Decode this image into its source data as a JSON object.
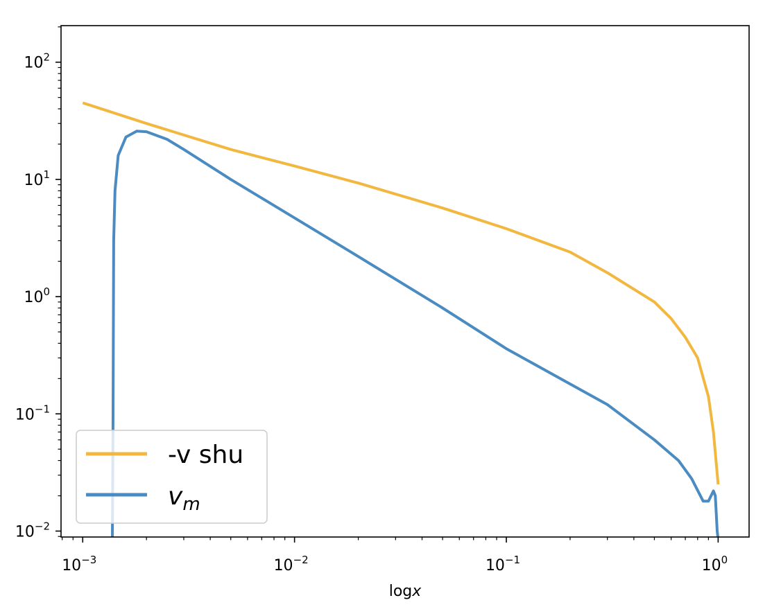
{
  "chart_data": {
    "type": "line",
    "title": "",
    "xlabel": "log",
    "xlabel_var": "x",
    "ylabel": "",
    "xscale": "log",
    "yscale": "log",
    "xlim": [
      0.00079,
      1.4
    ],
    "ylim": [
      0.0089,
      205
    ],
    "grid": false,
    "legend_placement": "lower-left",
    "x_ticks": [
      {
        "base": "10",
        "exp": "−3",
        "value": 0.001
      },
      {
        "base": "10",
        "exp": "−2",
        "value": 0.01
      },
      {
        "base": "10",
        "exp": "−1",
        "value": 0.1
      },
      {
        "base": "10",
        "exp": "0",
        "value": 1
      }
    ],
    "y_ticks": [
      {
        "base": "10",
        "exp": "−2",
        "value": 0.01
      },
      {
        "base": "10",
        "exp": "−1",
        "value": 0.1
      },
      {
        "base": "10",
        "exp": "0",
        "value": 1
      },
      {
        "base": "10",
        "exp": "1",
        "value": 10
      },
      {
        "base": "10",
        "exp": "2",
        "value": 100
      }
    ],
    "series": [
      {
        "name": "-v shu",
        "color": "#f2b73e",
        "points": [
          [
            0.001,
            45
          ],
          [
            0.002,
            30
          ],
          [
            0.005,
            18
          ],
          [
            0.01,
            13
          ],
          [
            0.02,
            9.3
          ],
          [
            0.05,
            5.7
          ],
          [
            0.1,
            3.8
          ],
          [
            0.2,
            2.4
          ],
          [
            0.3,
            1.6
          ],
          [
            0.5,
            0.9
          ],
          [
            0.6,
            0.65
          ],
          [
            0.7,
            0.45
          ],
          [
            0.8,
            0.3
          ],
          [
            0.9,
            0.14
          ],
          [
            0.95,
            0.07
          ],
          [
            1.0,
            0.025
          ]
        ]
      },
      {
        "name_base": "v",
        "name_sub": "m",
        "color": "#4a8cc1",
        "points": [
          [
            0.00138,
            0.0085
          ],
          [
            0.00139,
            0.07
          ],
          [
            0.0014,
            3
          ],
          [
            0.00142,
            8
          ],
          [
            0.00147,
            16
          ],
          [
            0.0016,
            23
          ],
          [
            0.0018,
            25.8
          ],
          [
            0.002,
            25.5
          ],
          [
            0.0025,
            22
          ],
          [
            0.003,
            18
          ],
          [
            0.005,
            10
          ],
          [
            0.01,
            4.7
          ],
          [
            0.02,
            2.2
          ],
          [
            0.05,
            0.8
          ],
          [
            0.1,
            0.36
          ],
          [
            0.2,
            0.18
          ],
          [
            0.3,
            0.12
          ],
          [
            0.5,
            0.06
          ],
          [
            0.65,
            0.04
          ],
          [
            0.75,
            0.028
          ],
          [
            0.85,
            0.018
          ],
          [
            0.9,
            0.018
          ],
          [
            0.95,
            0.022
          ],
          [
            0.97,
            0.02
          ],
          [
            0.99,
            0.01
          ],
          [
            1.0,
            0.0085
          ]
        ]
      }
    ]
  }
}
